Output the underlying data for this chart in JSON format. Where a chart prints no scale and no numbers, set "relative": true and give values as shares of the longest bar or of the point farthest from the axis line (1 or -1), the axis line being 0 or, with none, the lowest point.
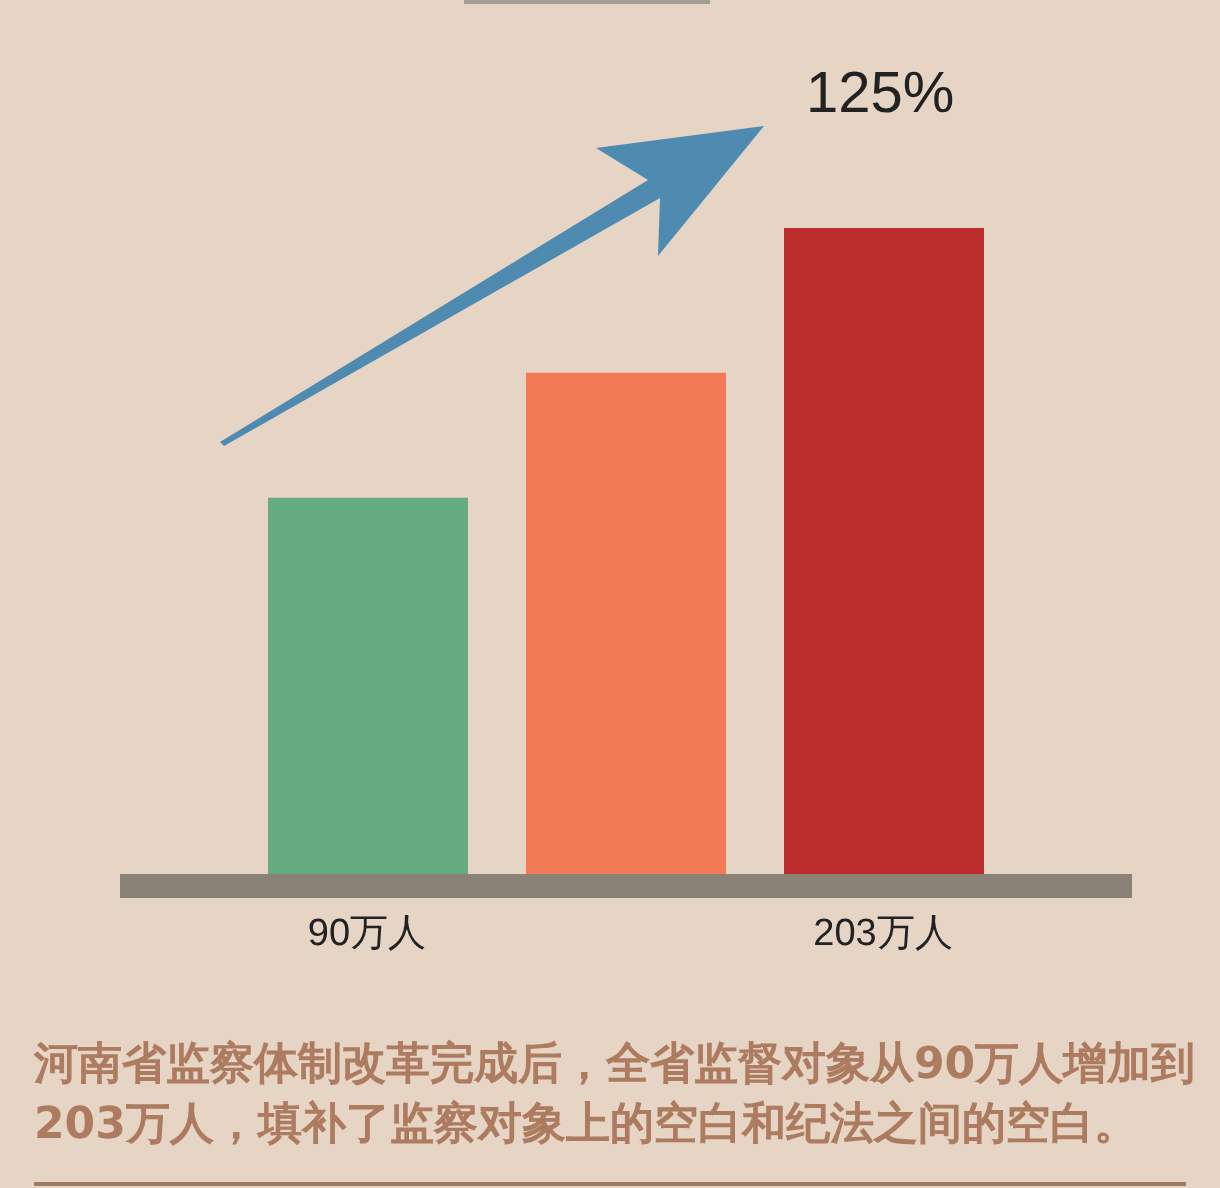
{
  "chart_data": {
    "type": "bar",
    "categories": [
      "90万人",
      null,
      "203万人"
    ],
    "values": [
      0.59,
      0.78,
      1
    ],
    "colors": [
      "#66aa82",
      "#f27a55",
      "#bb2c2c"
    ],
    "relative": true,
    "annotations": [
      "125%",
      "河南省监察体制改革完成后，全省监督对象从90万人增加到203万人，填补了监察对象上的空白和纪法之间的空白。"
    ]
  }
}
